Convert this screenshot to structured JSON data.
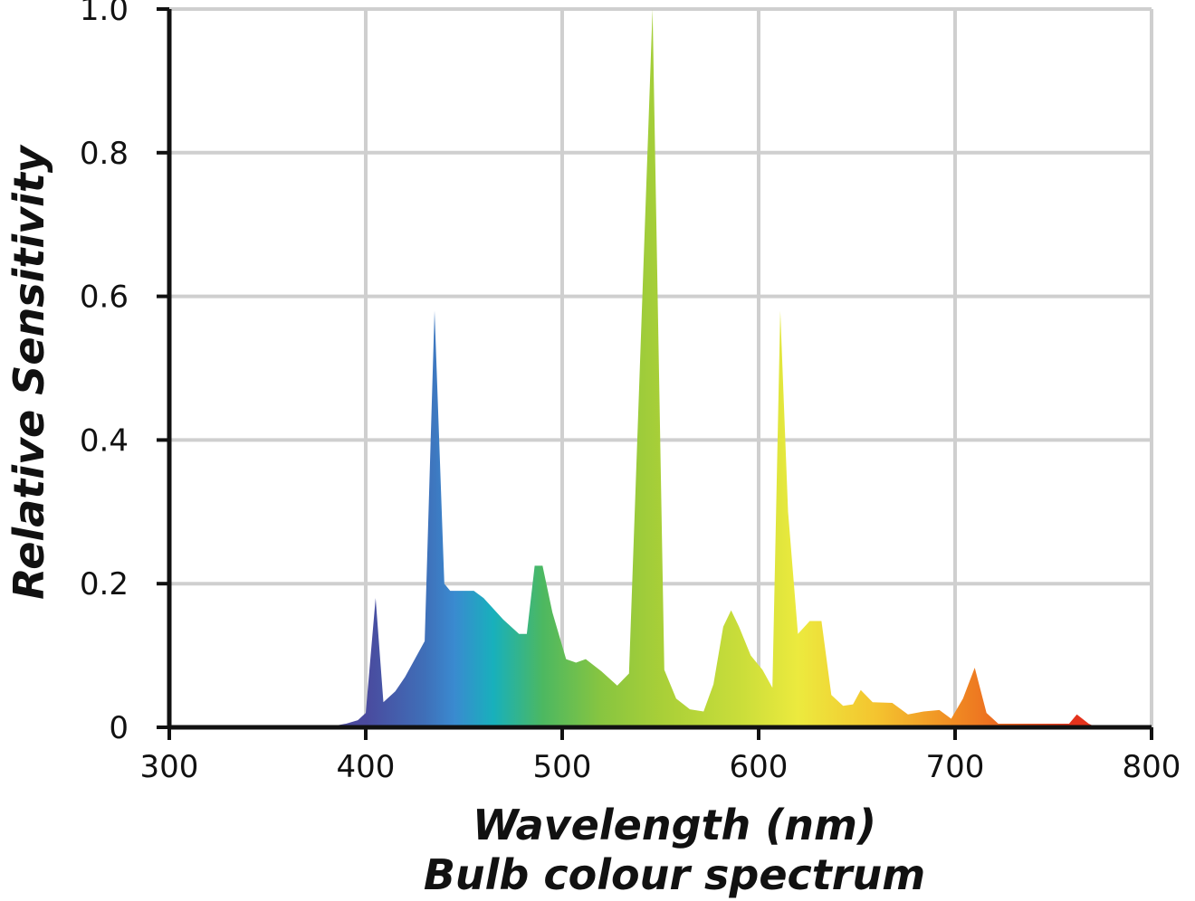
{
  "chart_data": {
    "type": "area",
    "xlabel": "Wavelength (nm)",
    "subtitle": "Bulb colour spectrum",
    "ylabel": "Relative Sensitivity",
    "xlim": [
      300,
      800
    ],
    "ylim": [
      0,
      1.0
    ],
    "x_ticks": [
      300,
      400,
      500,
      600,
      700,
      800
    ],
    "x_tick_labels": [
      "300",
      "400",
      "500",
      "600",
      "700",
      "800"
    ],
    "y_ticks": [
      0,
      0.2,
      0.4,
      0.6,
      0.8,
      1.0
    ],
    "y_tick_labels": [
      "0",
      "0.2",
      "0.4",
      "0.6",
      "0.8",
      "1.0"
    ],
    "grid": true,
    "fill": "spectral-gradient",
    "gradient_stops": [
      {
        "x": 400,
        "color": "#4a4a9e"
      },
      {
        "x": 430,
        "color": "#3f6fb8"
      },
      {
        "x": 445,
        "color": "#3a8ad0"
      },
      {
        "x": 465,
        "color": "#18b0bc"
      },
      {
        "x": 490,
        "color": "#4cb861"
      },
      {
        "x": 520,
        "color": "#88c540"
      },
      {
        "x": 550,
        "color": "#a8cf38"
      },
      {
        "x": 590,
        "color": "#c9dd3a"
      },
      {
        "x": 620,
        "color": "#ecea3e"
      },
      {
        "x": 660,
        "color": "#f4c42f"
      },
      {
        "x": 700,
        "color": "#f08a22"
      },
      {
        "x": 760,
        "color": "#e4321c"
      }
    ],
    "points": [
      [
        300,
        0.0
      ],
      [
        380,
        0.0
      ],
      [
        390,
        0.005
      ],
      [
        396,
        0.01
      ],
      [
        400,
        0.02
      ],
      [
        405,
        0.18
      ],
      [
        409,
        0.035
      ],
      [
        415,
        0.05
      ],
      [
        420,
        0.07
      ],
      [
        430,
        0.12
      ],
      [
        435,
        0.58
      ],
      [
        440,
        0.2
      ],
      [
        443,
        0.19
      ],
      [
        455,
        0.19
      ],
      [
        460,
        0.18
      ],
      [
        470,
        0.15
      ],
      [
        478,
        0.13
      ],
      [
        482,
        0.13
      ],
      [
        486,
        0.225
      ],
      [
        490,
        0.225
      ],
      [
        495,
        0.16
      ],
      [
        502,
        0.095
      ],
      [
        507,
        0.09
      ],
      [
        512,
        0.095
      ],
      [
        520,
        0.078
      ],
      [
        528,
        0.058
      ],
      [
        534,
        0.075
      ],
      [
        546,
        1.0
      ],
      [
        552,
        0.08
      ],
      [
        558,
        0.04
      ],
      [
        565,
        0.025
      ],
      [
        572,
        0.022
      ],
      [
        577,
        0.06
      ],
      [
        582,
        0.14
      ],
      [
        586,
        0.163
      ],
      [
        590,
        0.14
      ],
      [
        596,
        0.1
      ],
      [
        602,
        0.08
      ],
      [
        607,
        0.055
      ],
      [
        611,
        0.58
      ],
      [
        615,
        0.3
      ],
      [
        620,
        0.13
      ],
      [
        626,
        0.148
      ],
      [
        632,
        0.148
      ],
      [
        637,
        0.045
      ],
      [
        643,
        0.03
      ],
      [
        648,
        0.032
      ],
      [
        652,
        0.052
      ],
      [
        658,
        0.035
      ],
      [
        668,
        0.034
      ],
      [
        676,
        0.018
      ],
      [
        684,
        0.022
      ],
      [
        692,
        0.024
      ],
      [
        698,
        0.012
      ],
      [
        704,
        0.04
      ],
      [
        710,
        0.083
      ],
      [
        716,
        0.02
      ],
      [
        722,
        0.005
      ],
      [
        758,
        0.005
      ],
      [
        762,
        0.018
      ],
      [
        768,
        0.005
      ],
      [
        772,
        0.0
      ],
      [
        800,
        0.0
      ]
    ]
  }
}
